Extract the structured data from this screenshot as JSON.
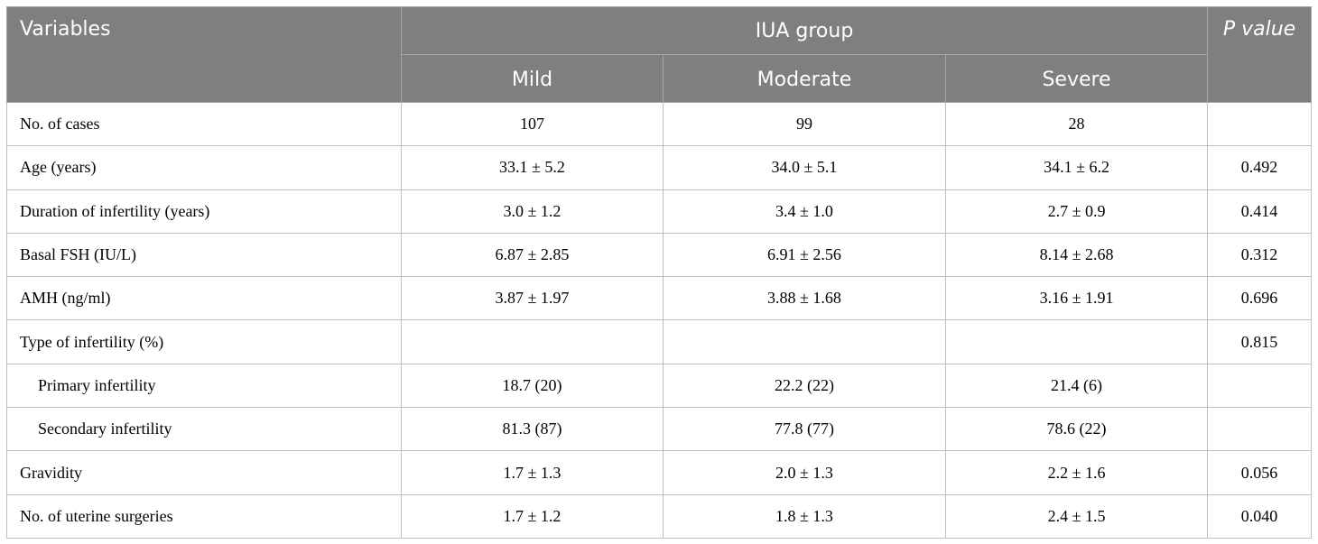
{
  "header": {
    "variables": "Variables",
    "group": "IUA group",
    "mild": "Mild",
    "moderate": "Moderate",
    "severe": "Severe",
    "p_value": "P value"
  },
  "rows": [
    {
      "label": "No. of cases",
      "mild": "107",
      "moderate": "99",
      "severe": "28",
      "p": "",
      "indent": false
    },
    {
      "label": "Age (years)",
      "mild": "33.1 ± 5.2",
      "moderate": "34.0 ± 5.1",
      "severe": "34.1 ± 6.2",
      "p": "0.492",
      "indent": false
    },
    {
      "label": "Duration of infertility (years)",
      "mild": "3.0 ± 1.2",
      "moderate": "3.4 ± 1.0",
      "severe": "2.7 ± 0.9",
      "p": "0.414",
      "indent": false
    },
    {
      "label": "Basal FSH (IU/L)",
      "mild": "6.87 ± 2.85",
      "moderate": "6.91 ± 2.56",
      "severe": "8.14 ± 2.68",
      "p": "0.312",
      "indent": false
    },
    {
      "label": "AMH (ng/ml)",
      "mild": "3.87 ± 1.97",
      "moderate": "3.88 ± 1.68",
      "severe": "3.16 ± 1.91",
      "p": "0.696",
      "indent": false
    },
    {
      "label": "Type of infertility (%)",
      "mild": "",
      "moderate": "",
      "severe": "",
      "p": "0.815",
      "indent": false
    },
    {
      "label": "Primary infertility",
      "mild": "18.7 (20)",
      "moderate": "22.2 (22)",
      "severe": "21.4 (6)",
      "p": "",
      "indent": true
    },
    {
      "label": "Secondary infertility",
      "mild": "81.3 (87)",
      "moderate": "77.8 (77)",
      "severe": "78.6 (22)",
      "p": "",
      "indent": true
    },
    {
      "label": "Gravidity",
      "mild": "1.7 ± 1.3",
      "moderate": "2.0 ± 1.3",
      "severe": "2.2 ± 1.6",
      "p": "0.056",
      "indent": false
    },
    {
      "label": "No. of uterine surgeries",
      "mild": "1.7 ± 1.2",
      "moderate": "1.8 ± 1.3",
      "severe": "2.4 ± 1.5",
      "p": "0.040",
      "indent": false
    }
  ]
}
